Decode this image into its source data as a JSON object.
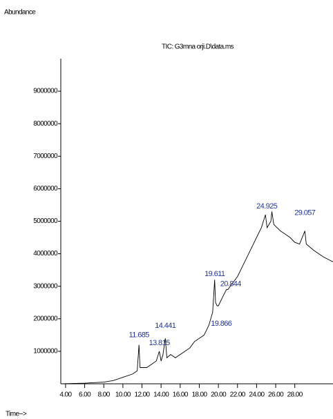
{
  "chart_data": {
    "type": "line",
    "title": "TIC: G3mna orji.D\\data.ms",
    "y_label": "Abundance",
    "x_label": "Time-->",
    "xlim": [
      3.5,
      32
    ],
    "ylim": [
      0,
      10000000
    ],
    "xticks": [
      {
        "value": 4,
        "label": "4.00"
      },
      {
        "value": 6,
        "label": "6.00"
      },
      {
        "value": 8,
        "label": "8.00"
      },
      {
        "value": 10,
        "label": "10.00"
      },
      {
        "value": 12,
        "label": "12.00"
      },
      {
        "value": 14,
        "label": "14.00"
      },
      {
        "value": 16,
        "label": "16.00"
      },
      {
        "value": 18,
        "label": "18.00"
      },
      {
        "value": 20,
        "label": "20.00"
      },
      {
        "value": 22,
        "label": "22.00"
      },
      {
        "value": 24,
        "label": "24.00"
      },
      {
        "value": 26,
        "label": "26.00"
      },
      {
        "value": 28,
        "label": "28.00"
      }
    ],
    "yticks": [
      1000000,
      2000000,
      3000000,
      4000000,
      5000000,
      6000000,
      7000000,
      8000000,
      9000000
    ],
    "color": "#000000",
    "x": [
      3.6,
      6,
      8,
      9,
      10,
      11,
      11.5,
      11.685,
      11.8,
      12.5,
      13,
      13.5,
      13.815,
      14,
      14.2,
      14.441,
      14.6,
      15,
      15.5,
      16,
      16.5,
      17,
      17.5,
      18,
      18.5,
      19,
      19.4,
      19.611,
      19.7,
      19.866,
      20,
      20.5,
      20.844,
      21,
      21.5,
      22,
      22.5,
      23,
      23.5,
      24,
      24.5,
      24.925,
      25.1,
      25.5,
      25.6,
      25.8,
      26.5,
      27,
      27.5,
      28,
      28.5,
      29.057,
      29.2,
      30,
      31,
      32
    ],
    "values": [
      0,
      20000,
      50000,
      100000,
      200000,
      300000,
      400000,
      1200000,
      500000,
      500000,
      600000,
      700000,
      1000000,
      700000,
      900000,
      1400000,
      800000,
      900000,
      800000,
      900000,
      1000000,
      1100000,
      1300000,
      1400000,
      1500000,
      1800000,
      2200000,
      3200000,
      2500000,
      2400000,
      2400000,
      2700000,
      2900000,
      2900000,
      3100000,
      3300000,
      3600000,
      3900000,
      4200000,
      4500000,
      4800000,
      5200000,
      4800000,
      5000000,
      5300000,
      4900000,
      4700000,
      4600000,
      4500000,
      4350000,
      4300000,
      4700000,
      4300000,
      4100000,
      3900000,
      3750000
    ],
    "annotations": [
      {
        "x": 11.685,
        "label": "11.685"
      },
      {
        "x": 13.815,
        "label": "13.815"
      },
      {
        "x": 14.441,
        "label": "14.441"
      },
      {
        "x": 19.611,
        "label": "19.611"
      },
      {
        "x": 19.866,
        "label": "19.866"
      },
      {
        "x": 20.844,
        "label": "20.844"
      },
      {
        "x": 24.925,
        "label": "24.925"
      },
      {
        "x": 29.057,
        "label": "29.057"
      }
    ]
  }
}
